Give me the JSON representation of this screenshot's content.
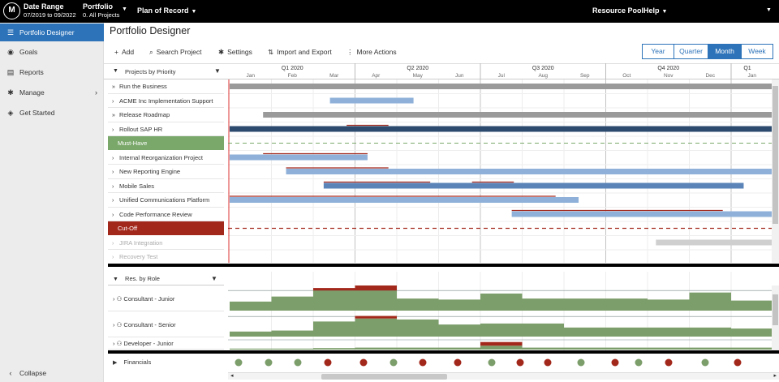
{
  "topbar": {
    "date_range_title": "Date Range",
    "date_range_value": "07/2019 to 09/2022",
    "portfolio_title": "Portfolio",
    "portfolio_value": "0. All Projects",
    "plan_label": "Plan of Record",
    "resource_pool_label": "Resource Pool",
    "help_label": "Help"
  },
  "sidebar": {
    "items": [
      {
        "label": "Portfolio Designer",
        "icon": "list-icon"
      },
      {
        "label": "Goals",
        "icon": "target-icon"
      },
      {
        "label": "Reports",
        "icon": "document-icon"
      },
      {
        "label": "Manage",
        "icon": "gear-icon"
      },
      {
        "label": "Get Started",
        "icon": "compass-icon"
      }
    ],
    "collapse_label": "Collapse"
  },
  "page": {
    "title": "Portfolio Designer"
  },
  "toolbar": {
    "add_label": "Add",
    "search_label": "Search Project",
    "settings_label": "Settings",
    "import_export_label": "Import and Export",
    "more_actions_label": "More Actions"
  },
  "view_toggle": {
    "options": [
      "Year",
      "Quarter",
      "Month",
      "Week"
    ],
    "selected": "Month"
  },
  "projects_panel": {
    "header": "Projects by Priority",
    "rows": [
      {
        "label": "Run the Business",
        "expander": "»",
        "kind": "project"
      },
      {
        "label": "ACME Inc Implementation Support",
        "expander": "›",
        "kind": "project"
      },
      {
        "label": "Release Roadmap",
        "expander": "»",
        "kind": "project"
      },
      {
        "label": "Rollout SAP HR",
        "expander": "›",
        "kind": "project"
      },
      {
        "label": "Must-Have",
        "expander": "",
        "kind": "band-green"
      },
      {
        "label": "Internal Reorganization Project",
        "expander": "›",
        "kind": "project"
      },
      {
        "label": "New Reporting Engine",
        "expander": "›",
        "kind": "project"
      },
      {
        "label": "Mobile Sales",
        "expander": "›",
        "kind": "project"
      },
      {
        "label": "Unified Communications Platform",
        "expander": "›",
        "kind": "project"
      },
      {
        "label": "Code Performance Review",
        "expander": "›",
        "kind": "project"
      },
      {
        "label": "Cut-Off",
        "expander": "",
        "kind": "band-red"
      },
      {
        "label": "JIRA Integration",
        "expander": "›",
        "kind": "dim"
      },
      {
        "label": "Recovery Test",
        "expander": "›",
        "kind": "dim"
      }
    ]
  },
  "timeline": {
    "quarters": [
      "Q1 2020",
      "Q2 2020",
      "Q3 2020",
      "Q4 2020",
      "Q1"
    ],
    "months": [
      "Jan",
      "Feb",
      "Mar",
      "Apr",
      "May",
      "Jun",
      "Jul",
      "Aug",
      "Sep",
      "Oct",
      "Nov",
      "Dec",
      "Jan"
    ]
  },
  "resources_panel": {
    "header": "Res. by Role",
    "rows": [
      "Consultant - Junior",
      "Consultant - Senior",
      "Developer - Junior"
    ]
  },
  "financials": {
    "label": "Financials",
    "status": [
      "green",
      "green",
      "green",
      "red",
      "red",
      "green",
      "red",
      "red",
      "green",
      "red",
      "red",
      "green",
      "red",
      "green",
      "red",
      "green",
      "red"
    ]
  },
  "colors": {
    "accent": "#2d73b9",
    "bar_gray": "#9a9a9a",
    "bar_light_blue": "#8fb1d9",
    "bar_dark_blue": "#2b4a6e",
    "bar_mid_blue": "#5b84b8",
    "band_green": "#7aa86a",
    "band_red": "#a3281c",
    "resource_green": "#7c9e6a",
    "over_red": "#a3281c"
  }
}
